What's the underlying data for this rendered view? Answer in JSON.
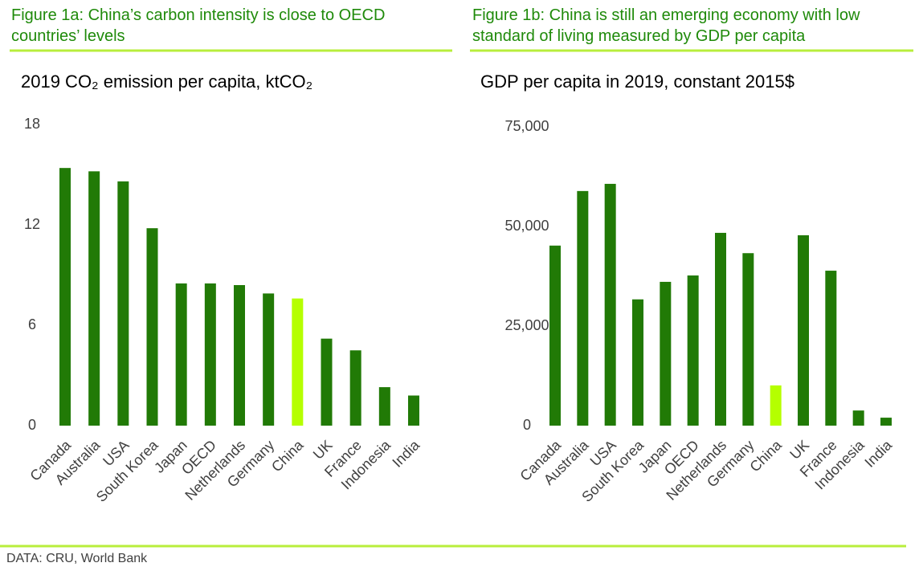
{
  "chart_data": [
    {
      "type": "bar",
      "figure_title": "Figure 1a: China’s carbon intensity is close to OECD countries’ levels",
      "title": "2019 CO₂ emission per capita, ktCO₂",
      "categories": [
        "Canada",
        "Australia",
        "USA",
        "South Korea",
        "Japan",
        "OECD",
        "Netherlands",
        "Germany",
        "China",
        "UK",
        "France",
        "Indonesia",
        "India"
      ],
      "values": [
        15.4,
        15.2,
        14.6,
        11.8,
        8.5,
        8.5,
        8.4,
        7.9,
        7.6,
        5.2,
        4.5,
        2.3,
        1.8
      ],
      "colors": [
        "#217a06",
        "#217a06",
        "#217a06",
        "#217a06",
        "#217a06",
        "#217a06",
        "#217a06",
        "#217a06",
        "#b5ff00",
        "#217a06",
        "#217a06",
        "#217a06",
        "#217a06"
      ],
      "ylim": [
        0,
        18
      ],
      "yticks": [
        0,
        6,
        12,
        18
      ],
      "grid": false
    },
    {
      "type": "bar",
      "figure_title": "Figure 1b: China is still an emerging economy with low standard of living measured by GDP per capita",
      "title": "GDP per capita in 2019, constant 2015$",
      "categories": [
        "Canada",
        "Australia",
        "USA",
        "South Korea",
        "Japan",
        "OECD",
        "Netherlands",
        "Germany",
        "China",
        "UK",
        "France",
        "Indonesia",
        "India"
      ],
      "values": [
        45200,
        58900,
        60700,
        31700,
        36100,
        37700,
        48400,
        43300,
        10100,
        47800,
        38900,
        3800,
        2000
      ],
      "colors": [
        "#217a06",
        "#217a06",
        "#217a06",
        "#217a06",
        "#217a06",
        "#217a06",
        "#217a06",
        "#217a06",
        "#b5ff00",
        "#217a06",
        "#217a06",
        "#217a06",
        "#217a06"
      ],
      "ylim": [
        0,
        75000
      ],
      "yticks": [
        0,
        {
          "value": 25000,
          "label": "25,000"
        },
        {
          "value": 50000,
          "label": "50,000"
        },
        {
          "value": 75000,
          "label": "75,000"
        }
      ],
      "grid": false
    }
  ],
  "source": "DATA: CRU, World Bank"
}
